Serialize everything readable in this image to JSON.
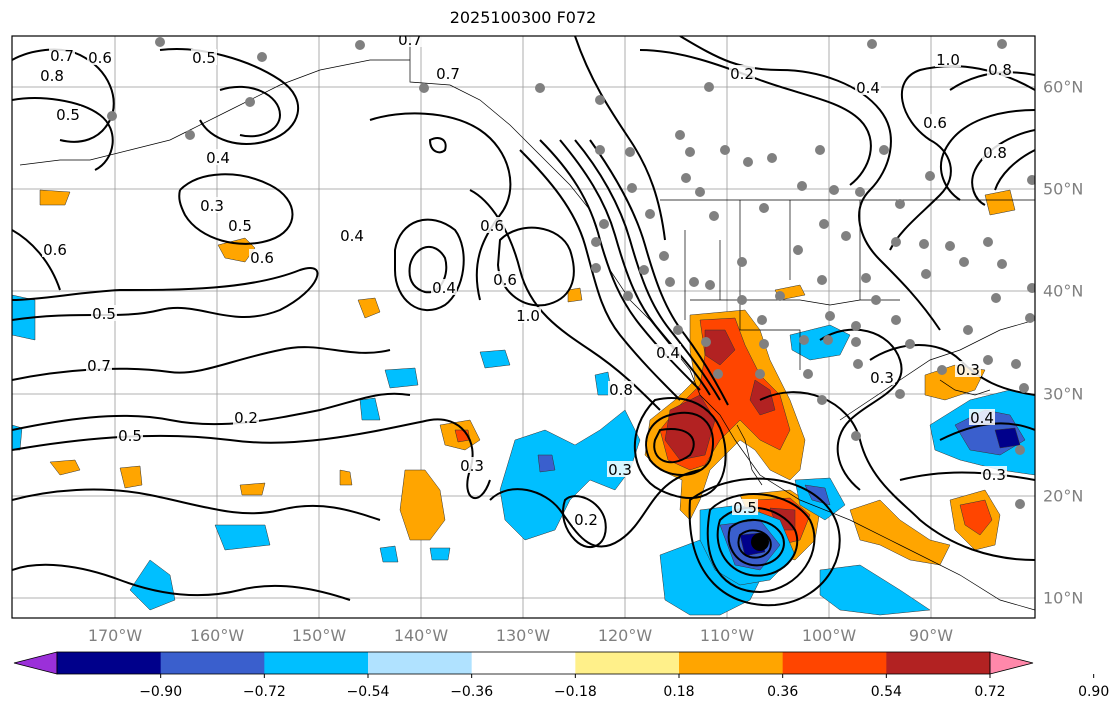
{
  "title": "2025100300 F072",
  "lon_labels": [
    "170°W",
    "160°W",
    "150°W",
    "140°W",
    "130°W",
    "120°W",
    "110°W",
    "100°W",
    "90°W"
  ],
  "lat_labels": [
    "60°N",
    "50°N",
    "40°N",
    "30°N",
    "20°N",
    "10°N"
  ],
  "colorbar": {
    "ticks": [
      "−0.90",
      "−0.72",
      "−0.54",
      "−0.36",
      "−0.18",
      "0.18",
      "0.36",
      "0.54",
      "0.72",
      "0.90"
    ],
    "colors": [
      "#9b30d9",
      "#00008b",
      "#3a5fcd",
      "#00bfff",
      "#b0e2ff",
      "#ffffff",
      "#fff08a",
      "#ffa500",
      "#ff4500",
      "#b22222",
      "#ff88aa"
    ]
  },
  "contour_labels": [
    "0.7",
    "0.6",
    "0.8",
    "0.5",
    "0.7",
    "0.2",
    "0.4",
    "0.7",
    "0.8",
    "1.0",
    "0.8",
    "0.5",
    "0.4",
    "0.3",
    "0.5",
    "0.6",
    "0.6",
    "0.4",
    "0.6",
    "0.6",
    "1.0",
    "0.4",
    "0.5",
    "0.7",
    "0.8",
    "0.4",
    "0.3",
    "0.2",
    "0.5",
    "0.3",
    "0.2",
    "0.3",
    "0.4",
    "0.3",
    "0.5",
    "0.3",
    "0.6"
  ],
  "colors": {
    "positive_fill": "#ffa500",
    "negative_fill": "#00bfff",
    "contour": "#000000",
    "station": "#808080",
    "grid": "#999999"
  }
}
